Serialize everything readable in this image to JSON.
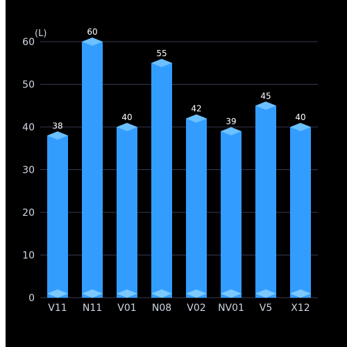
{
  "chart_data": {
    "type": "bar",
    "unit_label": "(L)",
    "categories": [
      "V11",
      "N11",
      "V01",
      "N08",
      "V02",
      "NV01",
      "V5",
      "X12"
    ],
    "values": [
      38,
      60,
      40,
      55,
      42,
      39,
      45,
      40
    ],
    "y_ticks": [
      0,
      10,
      20,
      30,
      40,
      50,
      60
    ],
    "ylim": [
      0,
      60
    ],
    "grid": true,
    "legend": "none",
    "colors": {
      "background": "#000000",
      "bar": "#339dff",
      "bar_cap": "#6bc0ff",
      "bar_base": "#7cc9ff",
      "grid": "#3a3a55",
      "axis_text": "#cfd6e3",
      "value_text": "#ffffff"
    }
  }
}
